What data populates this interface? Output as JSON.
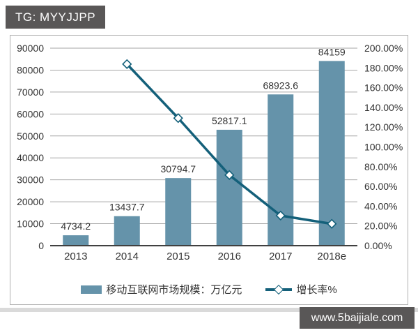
{
  "badge": {
    "text": "TG: MYYJJPP"
  },
  "watermark": {
    "text": "www.5baijiale.com"
  },
  "colors": {
    "bar": "#6593aa",
    "line": "#14607a",
    "grid": "#a6a6a6",
    "axis_line": "#404040",
    "text": "#333333",
    "badge_bg": "#595757",
    "watermark_bg": "#595757"
  },
  "chart_data": {
    "type": "combo-bar-line",
    "title": "",
    "categories": [
      "2013",
      "2014",
      "2015",
      "2016",
      "2017",
      "2018e"
    ],
    "series": [
      {
        "name": "移动互联网市场规模：万亿元",
        "type": "bar",
        "axis": "left",
        "values": [
          4734.2,
          13437.7,
          30794.7,
          52817.1,
          68923.6,
          84159
        ],
        "data_labels": [
          "4734.2",
          "13437.7",
          "30794.7",
          "52817.1",
          "68923.6",
          "84159"
        ]
      },
      {
        "name": "增长率%",
        "type": "line",
        "axis": "right",
        "values": [
          null,
          183.84,
          129.16,
          71.51,
          30.5,
          22.1
        ]
      }
    ],
    "left_axis": {
      "min": 0,
      "max": 90000,
      "step": 10000,
      "tick_labels": [
        "0",
        "10000",
        "20000",
        "30000",
        "40000",
        "50000",
        "60000",
        "70000",
        "80000",
        "90000"
      ]
    },
    "right_axis": {
      "min": 0,
      "max": 200,
      "step": 20,
      "tick_labels": [
        "0.00%",
        "20.00%",
        "40.00%",
        "60.00%",
        "80.00%",
        "100.00%",
        "120.00%",
        "140.00%",
        "160.00%",
        "180.00%",
        "200.00%"
      ]
    },
    "legend": {
      "position": "bottom",
      "items": [
        "移动互联网市场规模：万亿元",
        "增长率%"
      ]
    },
    "grid": true
  }
}
